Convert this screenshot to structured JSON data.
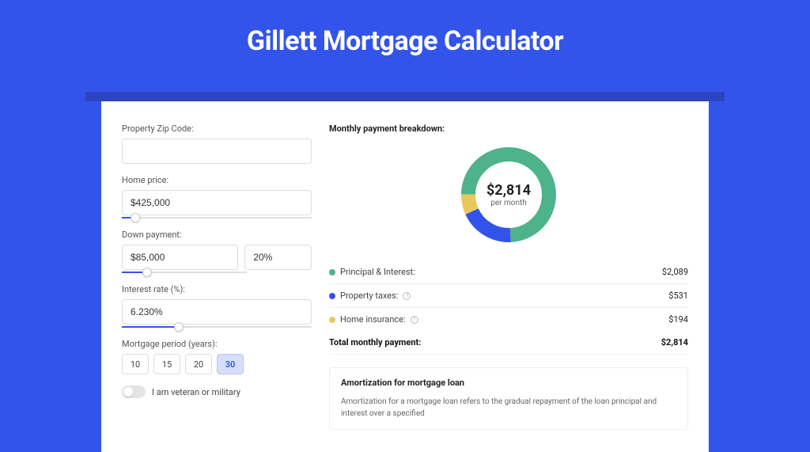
{
  "page": {
    "title": "Gillett Mortgage Calculator",
    "bg_color": "#3354eb",
    "shadow_color": "#2a44c2"
  },
  "form": {
    "zip": {
      "label": "Property Zip Code:",
      "value": ""
    },
    "home_price": {
      "label": "Home price:",
      "value": "$425,000",
      "slider_pct": 7
    },
    "down_payment": {
      "label": "Down payment:",
      "value": "$85,000",
      "pct": "20%",
      "slider_pct": 20
    },
    "interest_rate": {
      "label": "Interest rate (%):",
      "value": "6.230%",
      "slider_pct": 30
    },
    "mortgage_period": {
      "label": "Mortgage period (years):",
      "options": [
        "10",
        "15",
        "20",
        "30"
      ],
      "selected": "30"
    },
    "veteran": {
      "label": "I am veteran or military",
      "value": false
    }
  },
  "breakdown": {
    "title": "Monthly payment breakdown:",
    "chart": {
      "type": "donut",
      "center_value": "$2,814",
      "center_sub": "per month",
      "thickness": 18,
      "segments": [
        {
          "label": "Principal & Interest",
          "value": 2089,
          "pct": 74.2,
          "color": "#4eb38a"
        },
        {
          "label": "Property taxes",
          "value": 531,
          "pct": 18.9,
          "color": "#3354eb"
        },
        {
          "label": "Home insurance",
          "value": 194,
          "pct": 6.9,
          "color": "#e9c85b"
        }
      ],
      "start_angle_deg": 90
    },
    "rows": [
      {
        "swatch": "#4eb38a",
        "label": "Principal & Interest:",
        "info": false,
        "value": "$2,089"
      },
      {
        "swatch": "#3354eb",
        "label": "Property taxes:",
        "info": true,
        "value": "$531"
      },
      {
        "swatch": "#e9c85b",
        "label": "Home insurance:",
        "info": true,
        "value": "$194"
      }
    ],
    "total": {
      "label": "Total monthly payment:",
      "value": "$2,814"
    }
  },
  "amortization": {
    "title": "Amortization for mortgage loan",
    "text": "Amortization for a mortgage loan refers to the gradual repayment of the loan principal and interest over a specified"
  }
}
